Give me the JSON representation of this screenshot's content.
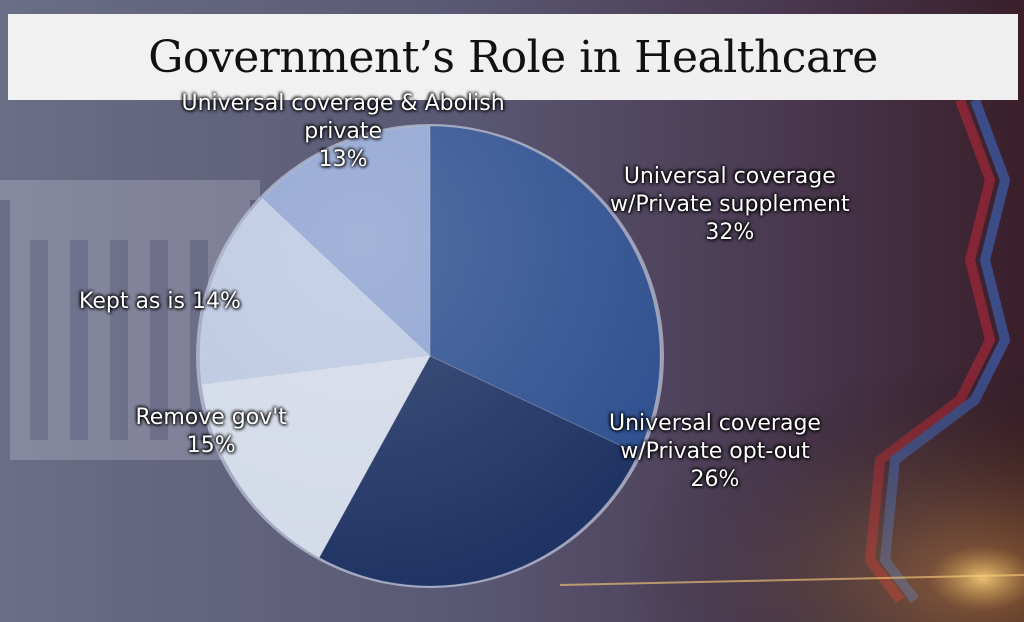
{
  "chart_data": {
    "type": "pie",
    "title": "Government’s Role in Healthcare",
    "slices": [
      {
        "label": "Universal coverage w/Private supplement",
        "label_lines": [
          "Universal coverage",
          "w/Private supplement"
        ],
        "value": 32,
        "value_text": "32%",
        "color": "#2e4f8f"
      },
      {
        "label": "Universal coverage w/Private opt-out",
        "label_lines": [
          "Universal coverage",
          "w/Private opt-out"
        ],
        "value": 26,
        "value_text": "26%",
        "color": "#1e3263"
      },
      {
        "label": "Remove gov't",
        "label_lines": [
          "Remove gov't"
        ],
        "value": 15,
        "value_text": "15%",
        "color": "#d3dae8"
      },
      {
        "label": "Kept as is",
        "label_lines": [
          "Kept as is 14%"
        ],
        "value": 14,
        "value_text": "",
        "color": "#bcc8e2"
      },
      {
        "label": "Universal coverage & Abolish private",
        "label_lines": [
          "Universal coverage & Abolish",
          "private"
        ],
        "value": 13,
        "value_text": "13%",
        "color": "#8ea3d0"
      }
    ]
  }
}
